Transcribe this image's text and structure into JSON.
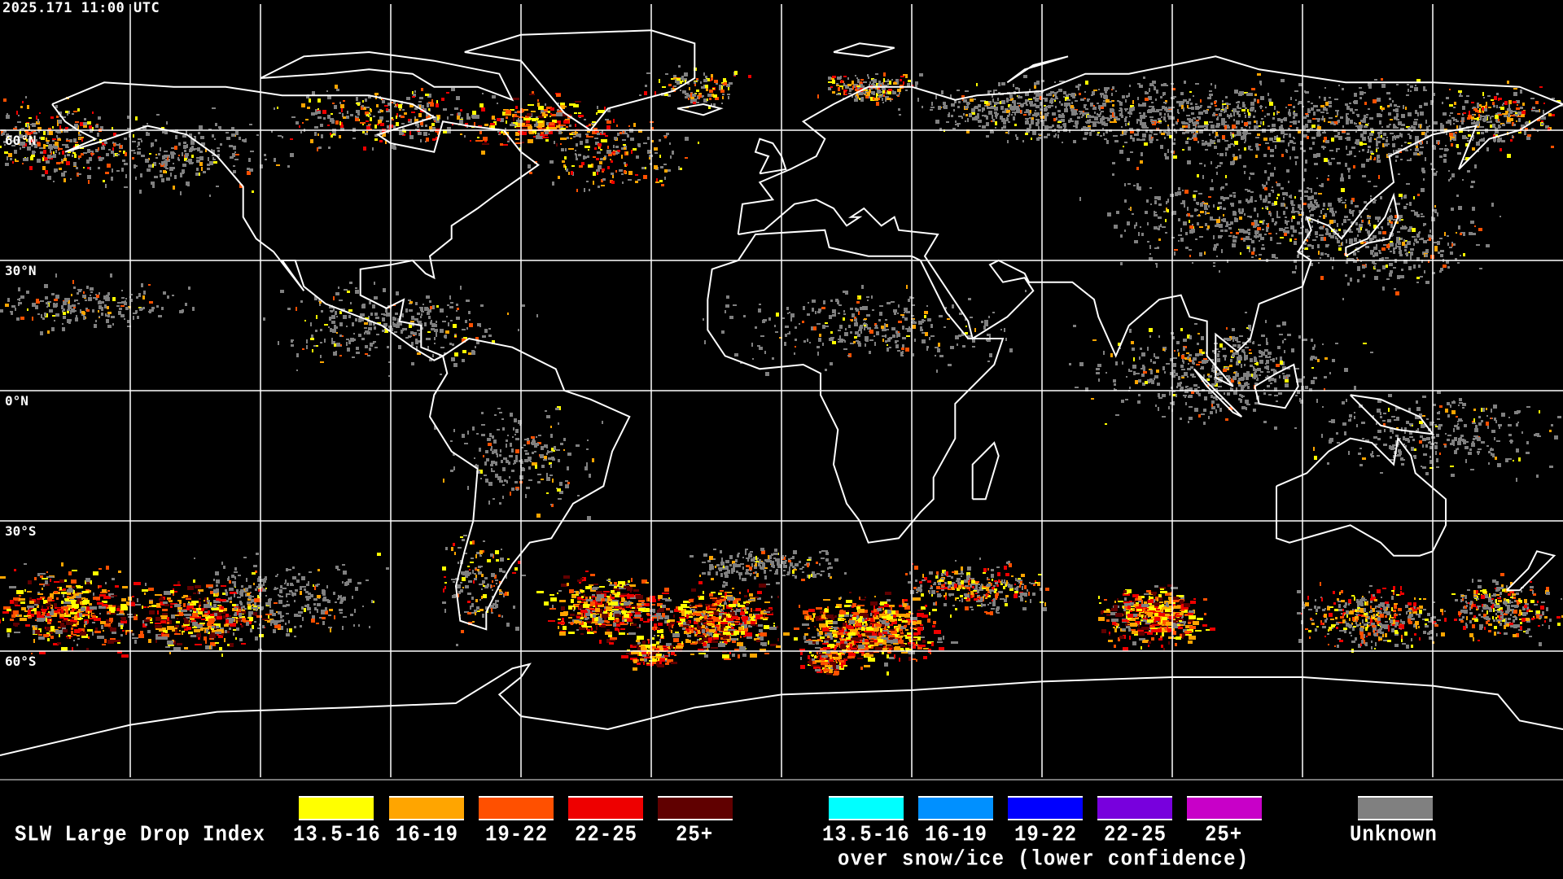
{
  "timestamp": "2025.171 11:00 UTC",
  "latitude_labels": [
    "60°N",
    "30°N",
    "0°N",
    "30°S",
    "60°S"
  ],
  "legend": {
    "title": "SLW Large Drop Index",
    "standard": [
      {
        "label": "13.5-16",
        "color": "#ffff00"
      },
      {
        "label": "16-19",
        "color": "#ffa500"
      },
      {
        "label": "19-22",
        "color": "#ff5000"
      },
      {
        "label": "22-25",
        "color": "#ee0000"
      },
      {
        "label": "25+",
        "color": "#600000"
      }
    ],
    "snow_ice": [
      {
        "label": "13.5-16",
        "color": "#00ffff"
      },
      {
        "label": "16-19",
        "color": "#0090ff"
      },
      {
        "label": "19-22",
        "color": "#0000ff"
      },
      {
        "label": "22-25",
        "color": "#7800dd"
      },
      {
        "label": "25+",
        "color": "#c800c8"
      }
    ],
    "snow_ice_caption": "over snow/ice (lower confidence)",
    "unknown": {
      "label": "Unknown",
      "color": "#808080"
    }
  },
  "colors": {
    "background": "#000000",
    "coastline": "#ffffff",
    "grid": "#ffffff"
  }
}
